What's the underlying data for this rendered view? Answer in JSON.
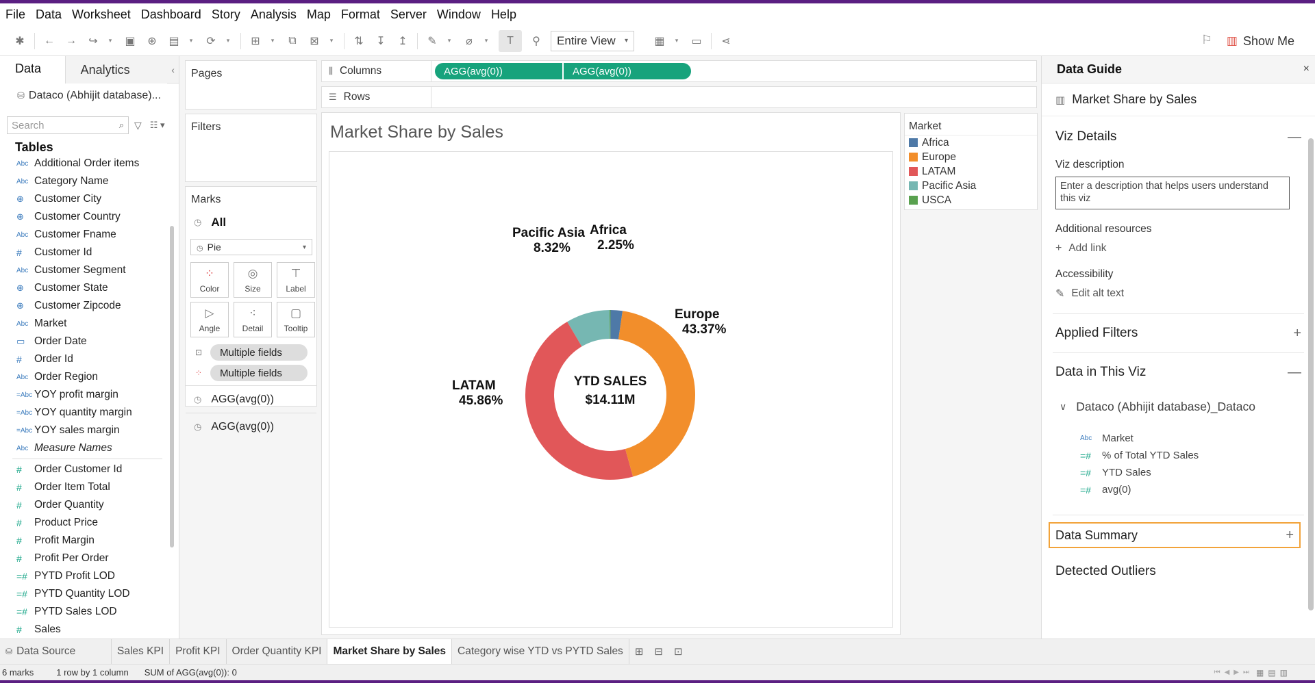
{
  "menu": [
    "File",
    "Data",
    "Worksheet",
    "Dashboard",
    "Story",
    "Analysis",
    "Map",
    "Format",
    "Server",
    "Window",
    "Help"
  ],
  "toolbar": {
    "view_mode": "Entire View",
    "show_me": "Show Me"
  },
  "data_pane": {
    "tab_data": "Data",
    "tab_analytics": "Analytics",
    "datasource": "Dataco (Abhijit database)...",
    "search_placeholder": "Search",
    "tables_header": "Tables",
    "dimensions": [
      {
        "type": "Abc",
        "name": "Additional Order items"
      },
      {
        "type": "Abc",
        "name": "Category Name"
      },
      {
        "type": "geo",
        "name": "Customer City"
      },
      {
        "type": "geo",
        "name": "Customer Country"
      },
      {
        "type": "Abc",
        "name": "Customer Fname"
      },
      {
        "type": "#",
        "name": "Customer Id"
      },
      {
        "type": "Abc",
        "name": "Customer Segment"
      },
      {
        "type": "geo",
        "name": "Customer State"
      },
      {
        "type": "geo",
        "name": "Customer Zipcode"
      },
      {
        "type": "Abc",
        "name": "Market"
      },
      {
        "type": "date",
        "name": "Order Date"
      },
      {
        "type": "#",
        "name": "Order Id"
      },
      {
        "type": "Abc",
        "name": "Order Region"
      },
      {
        "type": "=Abc",
        "name": "YOY profit margin"
      },
      {
        "type": "=Abc",
        "name": "YOY quantity margin"
      },
      {
        "type": "=Abc",
        "name": "YOY sales margin"
      },
      {
        "type": "Abc",
        "name": "Measure Names"
      }
    ],
    "measures": [
      {
        "type": "#",
        "name": "Order Customer Id"
      },
      {
        "type": "#",
        "name": "Order Item Total"
      },
      {
        "type": "#",
        "name": "Order Quantity"
      },
      {
        "type": "#",
        "name": "Product Price"
      },
      {
        "type": "#",
        "name": "Profit Margin"
      },
      {
        "type": "#",
        "name": "Profit Per Order"
      },
      {
        "type": "=#",
        "name": "PYTD Profit LOD"
      },
      {
        "type": "=#",
        "name": "PYTD Quantity LOD"
      },
      {
        "type": "=#",
        "name": "PYTD Sales LOD"
      },
      {
        "type": "#",
        "name": "Sales"
      }
    ]
  },
  "shelves": {
    "pages": "Pages",
    "filters": "Filters",
    "marks": "Marks",
    "marks_all": "All",
    "mark_type": "Pie",
    "mark_buttons": [
      "Color",
      "Size",
      "Label",
      "Angle",
      "Detail",
      "Tooltip"
    ],
    "pill_label": "Multiple fields",
    "pill_color": "Multiple fields",
    "agg1": "AGG(avg(0))",
    "agg2": "AGG(avg(0))",
    "columns_label": "Columns",
    "rows_label": "Rows",
    "column_pills": [
      "AGG(avg(0))",
      "AGG(avg(0))"
    ]
  },
  "view": {
    "title": "Market Share by Sales",
    "center_label_1": "YTD SALES",
    "center_label_2": "$14.11M"
  },
  "chart_data": {
    "type": "pie",
    "title": "Market Share by Sales",
    "categories": [
      "Africa",
      "Europe",
      "LATAM",
      "Pacific Asia",
      "USCA"
    ],
    "values": [
      2.25,
      43.37,
      45.86,
      8.32,
      0.2
    ],
    "labels": [
      "2.25%",
      "43.37%",
      "45.86%",
      "8.32%",
      ""
    ],
    "colors": [
      "#4e79a7",
      "#f28e2b",
      "#e15759",
      "#76b7b2",
      "#59a14f"
    ],
    "legend_position": "right",
    "legend_title": "Market"
  },
  "legend": {
    "title": "Market",
    "items": [
      {
        "name": "Africa",
        "color": "#4e79a7"
      },
      {
        "name": "Europe",
        "color": "#f28e2b"
      },
      {
        "name": "LATAM",
        "color": "#e15759"
      },
      {
        "name": "Pacific Asia",
        "color": "#76b7b2"
      },
      {
        "name": "USCA",
        "color": "#59a14f"
      }
    ]
  },
  "guide": {
    "header": "Data Guide",
    "sheet_title": "Market Share by Sales",
    "viz_details": "Viz Details",
    "viz_description_label": "Viz description",
    "viz_description_placeholder": "Enter a description that helps users understand this viz",
    "additional_resources": "Additional resources",
    "add_link": "Add link",
    "accessibility": "Accessibility",
    "edit_alt_text": "Edit alt text",
    "applied_filters": "Applied Filters",
    "data_in_viz": "Data in This Viz",
    "datasource": "Dataco (Abhijit database)_Dataco",
    "fields": [
      {
        "type": "Abc",
        "name": "Market"
      },
      {
        "type": "=#",
        "name": "% of Total YTD Sales"
      },
      {
        "type": "=#",
        "name": "YTD Sales"
      },
      {
        "type": "=#",
        "name": "avg(0)"
      }
    ],
    "data_summary": "Data Summary",
    "detected_outliers": "Detected Outliers"
  },
  "sheet_tabs": {
    "datasource": "Data Source",
    "tabs": [
      "Sales KPI",
      "Profit KPI",
      "Order Quantity KPI",
      "Market Share by Sales",
      "Category wise YTD vs PYTD Sales"
    ],
    "active": "Market Share by Sales"
  },
  "status": {
    "marks": "6 marks",
    "rows_cols": "1 row by 1 column",
    "sum": "SUM of AGG(avg(0)): 0"
  }
}
